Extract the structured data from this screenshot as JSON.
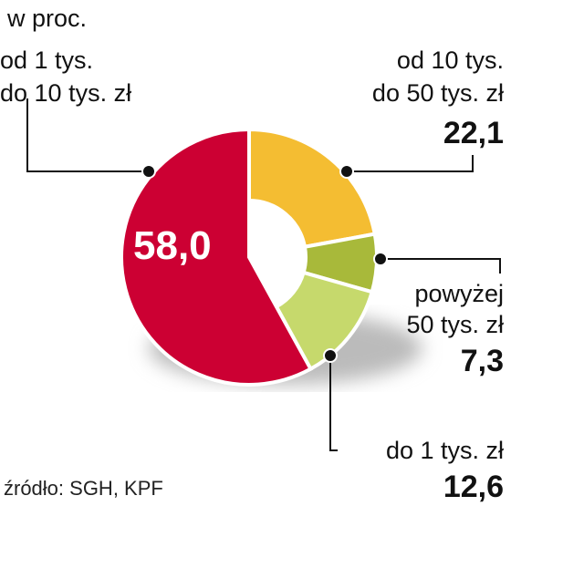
{
  "chart_data": {
    "type": "pie",
    "unit_label": "w proc.",
    "slices": [
      {
        "label_lines": [
          "od 10 tys.",
          "do 50 tys. zł"
        ],
        "value": 22.1,
        "value_text": "22,1",
        "color": "#f4bd32"
      },
      {
        "label_lines": [
          "powyżej",
          "50 tys. zł"
        ],
        "value": 7.3,
        "value_text": "7,3",
        "color": "#a8b93a"
      },
      {
        "label_lines": [
          "do 1 tys. zł"
        ],
        "value": 12.6,
        "value_text": "12,6",
        "color": "#c6d96c"
      },
      {
        "label_lines": [
          "od 1 tys.",
          "do 10 tys. zł"
        ],
        "value": 58.0,
        "value_text": "58,0",
        "color": "#cc0033"
      }
    ],
    "source": "źródło: SGH, KPF"
  }
}
